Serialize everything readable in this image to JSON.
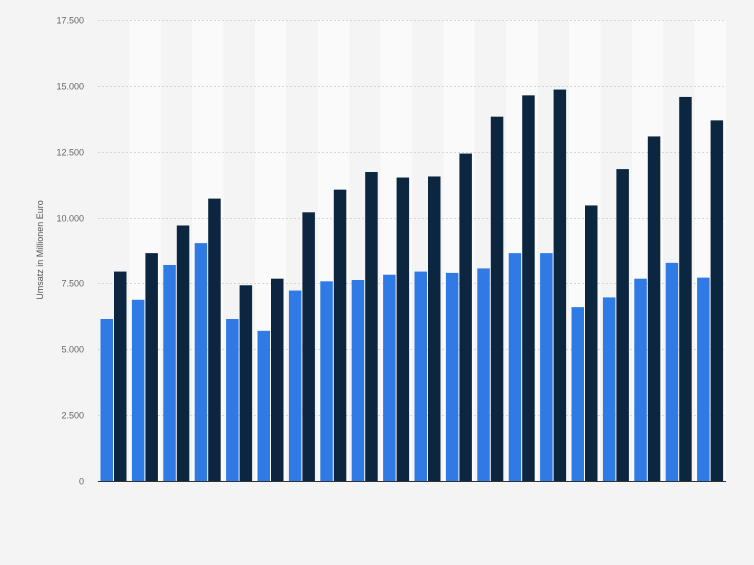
{
  "chart_data": {
    "type": "bar",
    "title": "",
    "xlabel": "",
    "ylabel": "Umsatz in Millionen Euro",
    "ylim": [
      0,
      17500
    ],
    "yticks": [
      0,
      2500,
      5000,
      7500,
      10000,
      12500,
      15000,
      17500
    ],
    "ytick_labels": [
      "0",
      "2.500",
      "5.000",
      "7.500",
      "10.000",
      "12.500",
      "15.000",
      "17.500"
    ],
    "grid": true,
    "categories": [
      "",
      "",
      "",
      "",
      "",
      "",
      "",
      "",
      "",
      "",
      "",
      "",
      "",
      "",
      "",
      "",
      "",
      "",
      "",
      ""
    ],
    "series": [
      {
        "color": "#2f7ae5",
        "values": [
          6150,
          6880,
          8200,
          9030,
          6150,
          5700,
          7230,
          7580,
          7630,
          7830,
          7950,
          7900,
          8070,
          8650,
          8650,
          6600,
          6970,
          7680,
          8280,
          7720
        ]
      },
      {
        "color": "#0d2640",
        "values": [
          7950,
          8650,
          9700,
          10720,
          7430,
          7680,
          10200,
          11060,
          11730,
          11520,
          11560,
          12430,
          13830,
          14640,
          14860,
          10460,
          11840,
          13080,
          14580,
          13690
        ]
      }
    ]
  }
}
